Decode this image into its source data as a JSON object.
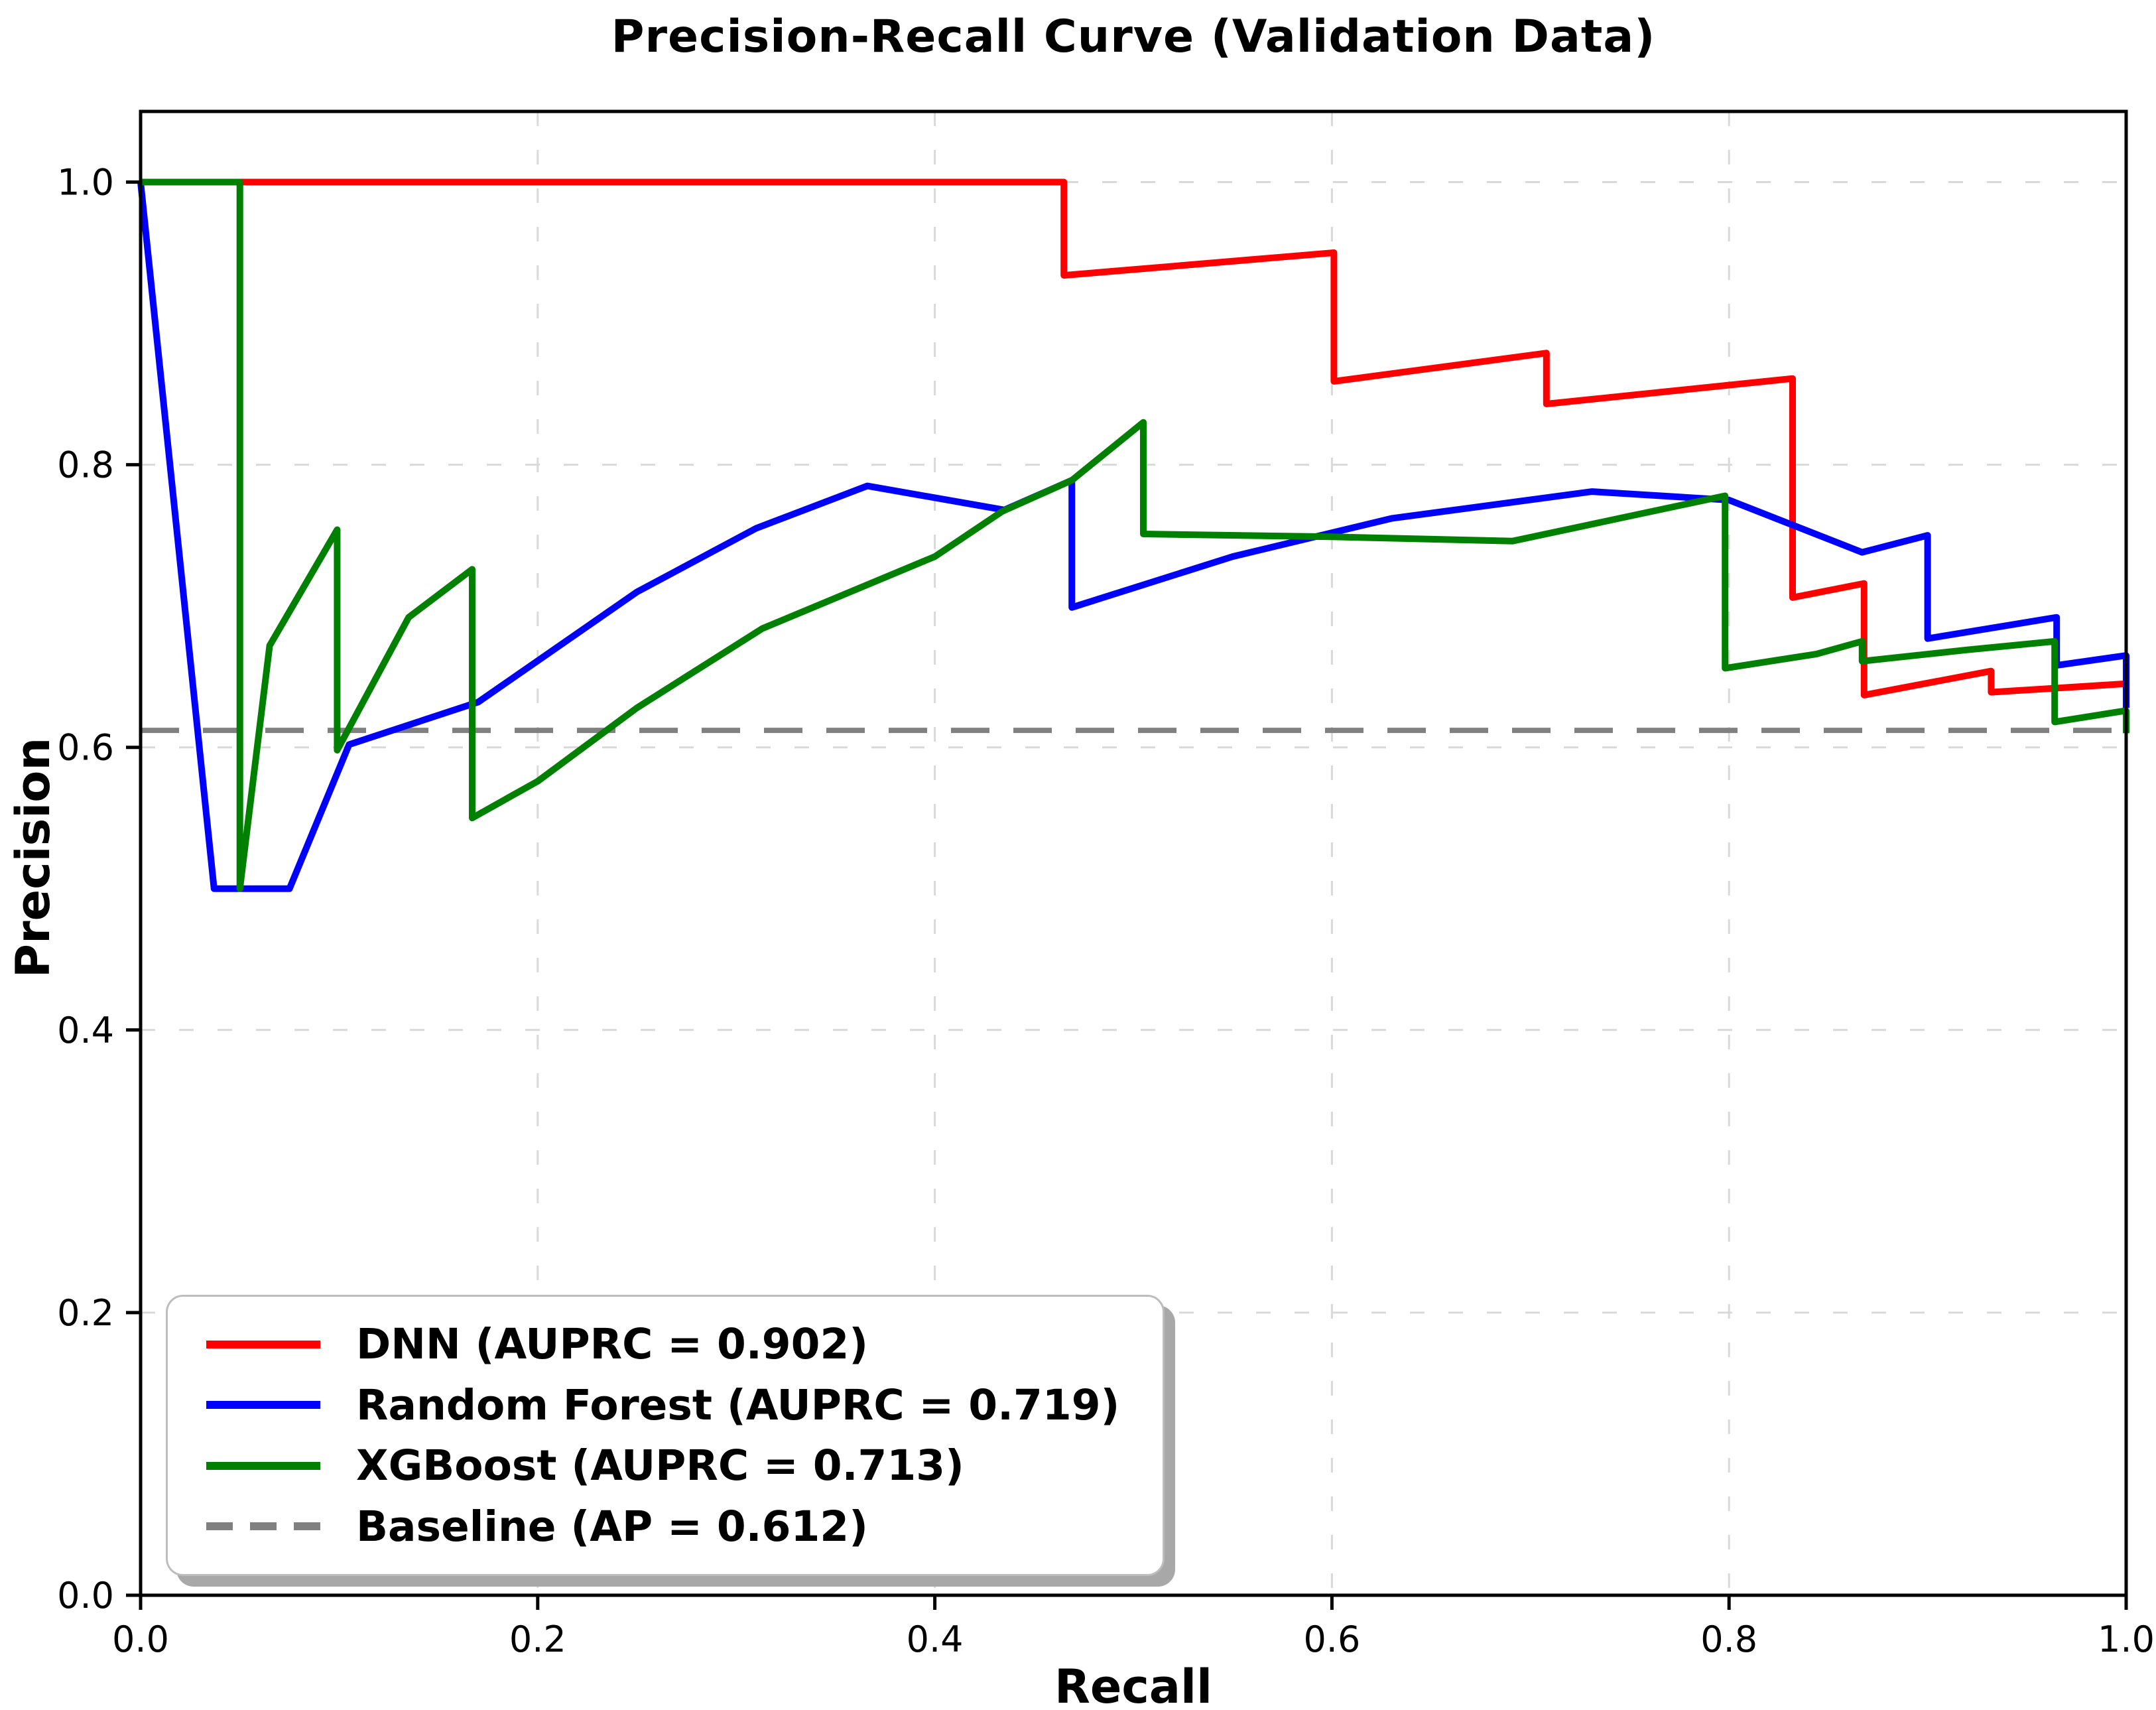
{
  "chart_data": {
    "type": "line",
    "title": "Precision-Recall Curve (Validation Data)",
    "xlabel": "Recall",
    "ylabel": "Precision",
    "xlim": [
      0.0,
      1.0
    ],
    "ylim": [
      0.0,
      1.05
    ],
    "x_tick_labels": [
      "0.0",
      "0.2",
      "0.4",
      "0.6",
      "0.8",
      "1.0"
    ],
    "y_tick_labels": [
      "0.0",
      "0.2",
      "0.4",
      "0.6",
      "0.8",
      "1.0"
    ],
    "x_ticks": [
      0.0,
      0.2,
      0.4,
      0.6,
      0.8,
      1.0
    ],
    "y_ticks": [
      0.0,
      0.2,
      0.4,
      0.6,
      0.8,
      1.0
    ],
    "grid": true,
    "legend_position": "lower left",
    "baseline": {
      "label": "Baseline (AP = 0.612)",
      "value": 0.612,
      "color": "#808080",
      "style": "dashed"
    },
    "series": [
      {
        "name": "DNN (AUPRC = 0.902)",
        "auprc": 0.902,
        "color": "#ff0000",
        "points": [
          [
            0.0,
            1.0
          ],
          [
            0.465,
            1.0
          ],
          [
            0.465,
            0.934
          ],
          [
            0.601,
            0.95
          ],
          [
            0.601,
            0.859
          ],
          [
            0.708,
            0.879
          ],
          [
            0.708,
            0.843
          ],
          [
            0.832,
            0.861
          ],
          [
            0.832,
            0.706
          ],
          [
            0.868,
            0.716
          ],
          [
            0.868,
            0.637
          ],
          [
            0.932,
            0.654
          ],
          [
            0.932,
            0.639
          ],
          [
            1.0,
            0.645
          ]
        ]
      },
      {
        "name": "Random Forest (AUPRC = 0.719)",
        "auprc": 0.719,
        "color": "#0000ff",
        "points": [
          [
            0.0,
            1.0
          ],
          [
            0.037,
            0.5
          ],
          [
            0.075,
            0.5
          ],
          [
            0.105,
            0.602
          ],
          [
            0.17,
            0.632
          ],
          [
            0.25,
            0.71
          ],
          [
            0.31,
            0.755
          ],
          [
            0.366,
            0.785
          ],
          [
            0.435,
            0.768
          ],
          [
            0.469,
            0.789
          ],
          [
            0.469,
            0.699
          ],
          [
            0.55,
            0.735
          ],
          [
            0.63,
            0.762
          ],
          [
            0.731,
            0.781
          ],
          [
            0.8,
            0.775
          ],
          [
            0.867,
            0.738
          ],
          [
            0.9,
            0.75
          ],
          [
            0.9,
            0.677
          ],
          [
            0.965,
            0.692
          ],
          [
            0.965,
            0.658
          ],
          [
            1.0,
            0.665
          ],
          [
            1.0,
            0.628
          ]
        ]
      },
      {
        "name": "XGBoost (AUPRC = 0.713)",
        "auprc": 0.713,
        "color": "#008000",
        "points": [
          [
            0.0,
            1.0
          ],
          [
            0.05,
            1.0
          ],
          [
            0.05,
            0.5
          ],
          [
            0.065,
            0.672
          ],
          [
            0.099,
            0.754
          ],
          [
            0.099,
            0.598
          ],
          [
            0.135,
            0.692
          ],
          [
            0.167,
            0.726
          ],
          [
            0.167,
            0.55
          ],
          [
            0.2,
            0.576
          ],
          [
            0.25,
            0.628
          ],
          [
            0.313,
            0.684
          ],
          [
            0.4,
            0.735
          ],
          [
            0.434,
            0.767
          ],
          [
            0.469,
            0.789
          ],
          [
            0.505,
            0.83
          ],
          [
            0.505,
            0.751
          ],
          [
            0.6,
            0.749
          ],
          [
            0.691,
            0.746
          ],
          [
            0.798,
            0.778
          ],
          [
            0.798,
            0.656
          ],
          [
            0.844,
            0.666
          ],
          [
            0.867,
            0.675
          ],
          [
            0.867,
            0.661
          ],
          [
            0.92,
            0.669
          ],
          [
            0.964,
            0.675
          ],
          [
            0.964,
            0.618
          ],
          [
            1.0,
            0.626
          ],
          [
            1.0,
            0.61
          ]
        ]
      }
    ]
  },
  "colors": {
    "background": "#ffffff",
    "spine": "#000000",
    "gridline": "#d9d9d9",
    "tick_label": "#000000",
    "baseline_gray": "#808080",
    "legend_border": "#bdbdbd",
    "legend_shadow": "#a8a8a8"
  }
}
